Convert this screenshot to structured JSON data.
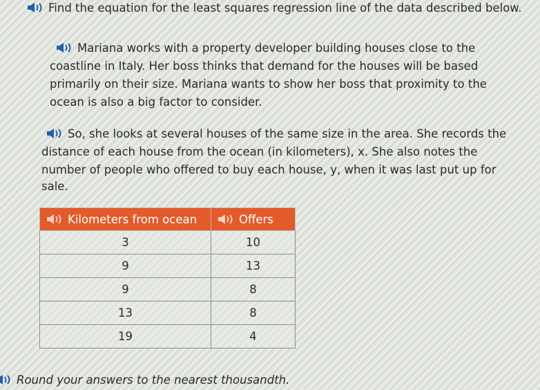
{
  "prompt": "Find the equation for the least squares regression line of the data described below.",
  "paragraph1": [
    "Mariana works with a property developer building houses close to the",
    "coastline in Italy. Her boss thinks that demand for the houses will be based",
    "primarily on their size. Mariana wants to show her boss that proximity to the",
    "ocean is also a big factor to consider."
  ],
  "paragraph2": [
    "So, she looks at several houses of the same size in the area. She records the",
    "distance of each house from the ocean (in kilometers), x. She also notes the",
    "number of people who offered to buy each house, y, when it was last put up for",
    "sale."
  ],
  "table": {
    "headers": [
      "Kilometers from ocean",
      "Offers"
    ],
    "rows": [
      [
        "3",
        "10"
      ],
      [
        "9",
        "13"
      ],
      [
        "9",
        "8"
      ],
      [
        "13",
        "8"
      ],
      [
        "19",
        "4"
      ]
    ]
  },
  "footer": "Round your answers to the nearest thousandth.",
  "colors": {
    "header": "#e35a2b",
    "speaker": "#1f5fa8"
  }
}
